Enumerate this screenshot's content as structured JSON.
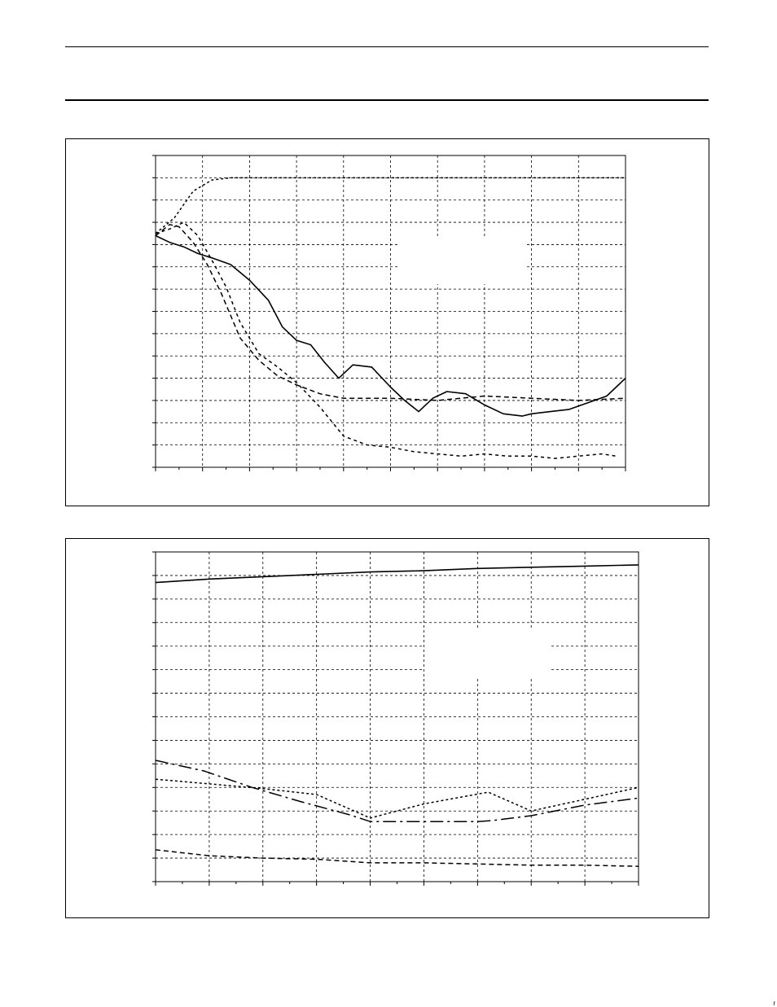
{
  "chart_data": [
    {
      "type": "line",
      "x_minor_per_major": 1,
      "xlim": [
        0,
        10
      ],
      "ylim": [
        0,
        14
      ],
      "x_gridlines": 10,
      "y_gridlines": 14,
      "grid": true,
      "series": [
        {
          "style": "dotted",
          "x": [
            0,
            0.4,
            0.8,
            1.2,
            1.6,
            2,
            3,
            4,
            5,
            6,
            7,
            8,
            9,
            10
          ],
          "y": [
            10.5,
            11.2,
            12.4,
            12.9,
            13,
            13,
            13,
            13,
            13,
            13,
            13,
            13,
            13,
            13
          ]
        },
        {
          "style": "solid",
          "x": [
            0,
            0.3,
            0.6,
            0.9,
            1.2,
            1.6,
            2,
            2.4,
            2.7,
            3,
            3.3,
            3.6,
            3.9,
            4.2,
            4.6,
            5,
            5.3,
            5.6,
            5.9,
            6.2,
            6.6,
            7,
            7.4,
            7.8,
            8,
            8.4,
            8.8,
            9.2,
            9.6,
            10
          ],
          "y": [
            10.4,
            10.1,
            9.9,
            9.6,
            9.4,
            9.1,
            8.4,
            7.5,
            6.3,
            5.7,
            5.5,
            4.7,
            4,
            4.6,
            4.5,
            3.6,
            3,
            2.5,
            3.1,
            3.4,
            3.3,
            2.8,
            2.4,
            2.3,
            2.4,
            2.5,
            2.6,
            2.9,
            3.2,
            4
          ]
        },
        {
          "style": "dashed",
          "x": [
            0,
            0.3,
            0.5,
            0.8,
            1.1,
            1.4,
            1.8,
            2.2,
            2.6,
            3,
            3.5,
            4,
            5,
            6,
            7,
            8,
            9,
            10
          ],
          "y": [
            10.4,
            10.9,
            10.8,
            10.1,
            9.1,
            7.8,
            5.8,
            4.8,
            4.1,
            3.7,
            3.3,
            3.1,
            3.1,
            3.0,
            3.2,
            3.1,
            3.0,
            3.1
          ]
        },
        {
          "style": "short-dashed",
          "x": [
            0,
            0.3,
            0.6,
            0.9,
            1.2,
            1.5,
            1.8,
            2.2,
            2.6,
            3,
            3.5,
            4,
            4.5,
            5,
            5.5,
            6,
            6.5,
            7,
            7.5,
            8,
            8.5,
            9,
            9.5,
            9.8
          ],
          "y": [
            10.5,
            10.7,
            11,
            10.4,
            9.3,
            8.1,
            6.5,
            5.1,
            4.5,
            3.8,
            2.7,
            1.4,
            1.0,
            0.9,
            0.7,
            0.6,
            0.5,
            0.6,
            0.5,
            0.5,
            0.4,
            0.5,
            0.6,
            0.5
          ]
        }
      ]
    },
    {
      "type": "line",
      "xlim": [
        0,
        9
      ],
      "ylim": [
        0,
        14
      ],
      "x_gridlines": 9,
      "y_gridlines": 14,
      "grid": true,
      "series": [
        {
          "style": "solid",
          "x": [
            0,
            1,
            2,
            3,
            4,
            5,
            6,
            7,
            8,
            9
          ],
          "y": [
            12.7,
            12.85,
            12.95,
            13.05,
            13.15,
            13.2,
            13.3,
            13.35,
            13.4,
            13.45
          ]
        },
        {
          "style": "dash-dot",
          "x": [
            0,
            0.9,
            1.8,
            2.7,
            3.6,
            4,
            5,
            6,
            6.3,
            7,
            8,
            9
          ],
          "y": [
            5.15,
            4.7,
            4.0,
            3.4,
            2.85,
            2.55,
            2.55,
            2.55,
            2.6,
            2.8,
            3.25,
            3.55
          ]
        },
        {
          "style": "dotted",
          "x": [
            0,
            1,
            2,
            3,
            4,
            5,
            6.2,
            7,
            8,
            9
          ],
          "y": [
            4.35,
            4.15,
            3.95,
            3.7,
            2.7,
            3.3,
            3.8,
            3.0,
            3.5,
            4.0
          ]
        },
        {
          "style": "dashed",
          "x": [
            0,
            1,
            2,
            3,
            4,
            5,
            6,
            7,
            8,
            9
          ],
          "y": [
            1.35,
            1.1,
            1.0,
            0.95,
            0.8,
            0.8,
            0.75,
            0.7,
            0.7,
            0.65
          ]
        }
      ]
    }
  ],
  "footer_mark": "r"
}
